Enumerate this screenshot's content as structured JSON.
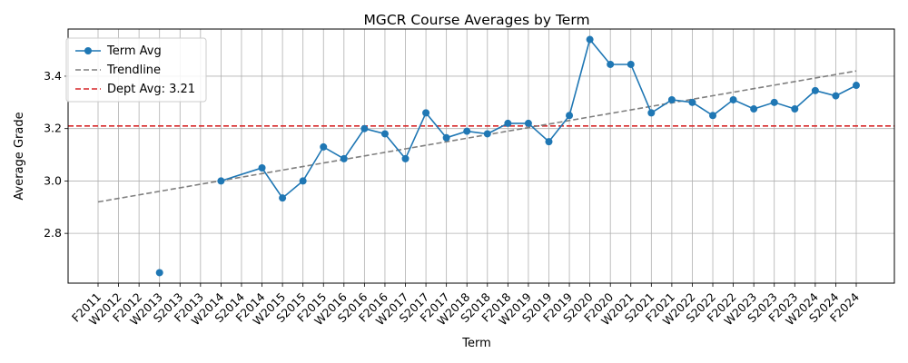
{
  "chart_data": {
    "type": "line",
    "title": "MGCR Course Averages by Term",
    "xlabel": "Term",
    "ylabel": "Average Grade",
    "ylim": [
      2.61,
      3.58
    ],
    "yticks": [
      2.8,
      3.0,
      3.2,
      3.4
    ],
    "grid": true,
    "legend_position": "top-left",
    "categories": [
      "F2011",
      "W2012",
      "F2012",
      "W2013",
      "S2013",
      "F2013",
      "W2014",
      "S2014",
      "F2014",
      "W2015",
      "S2015",
      "F2015",
      "W2016",
      "S2016",
      "F2016",
      "W2017",
      "S2017",
      "F2017",
      "W2018",
      "S2018",
      "F2018",
      "W2019",
      "S2019",
      "F2019",
      "S2020",
      "F2020",
      "W2021",
      "S2021",
      "F2021",
      "W2022",
      "S2022",
      "F2022",
      "W2023",
      "S2023",
      "F2023",
      "W2024",
      "S2024",
      "F2024"
    ],
    "series": [
      {
        "name": "Term Avg",
        "color": "#1f77b4",
        "style": "solid-markers",
        "values": [
          null,
          null,
          null,
          2.65,
          null,
          null,
          3.0,
          null,
          3.05,
          2.935,
          3.0,
          3.13,
          3.085,
          3.2,
          3.18,
          3.085,
          3.26,
          3.165,
          3.19,
          3.18,
          3.22,
          3.22,
          3.15,
          3.25,
          3.54,
          3.445,
          3.445,
          3.26,
          3.31,
          3.3,
          3.25,
          3.31,
          3.275,
          3.3,
          3.275,
          3.345,
          3.325,
          3.365
        ]
      },
      {
        "name": "Trendline",
        "color": "#7f7f7f",
        "style": "dashed",
        "start": 2.92,
        "end": 3.42
      },
      {
        "name": "Dept Avg: 3.21",
        "color": "#d62728",
        "style": "dashed-horizontal",
        "value": 3.21
      }
    ]
  }
}
